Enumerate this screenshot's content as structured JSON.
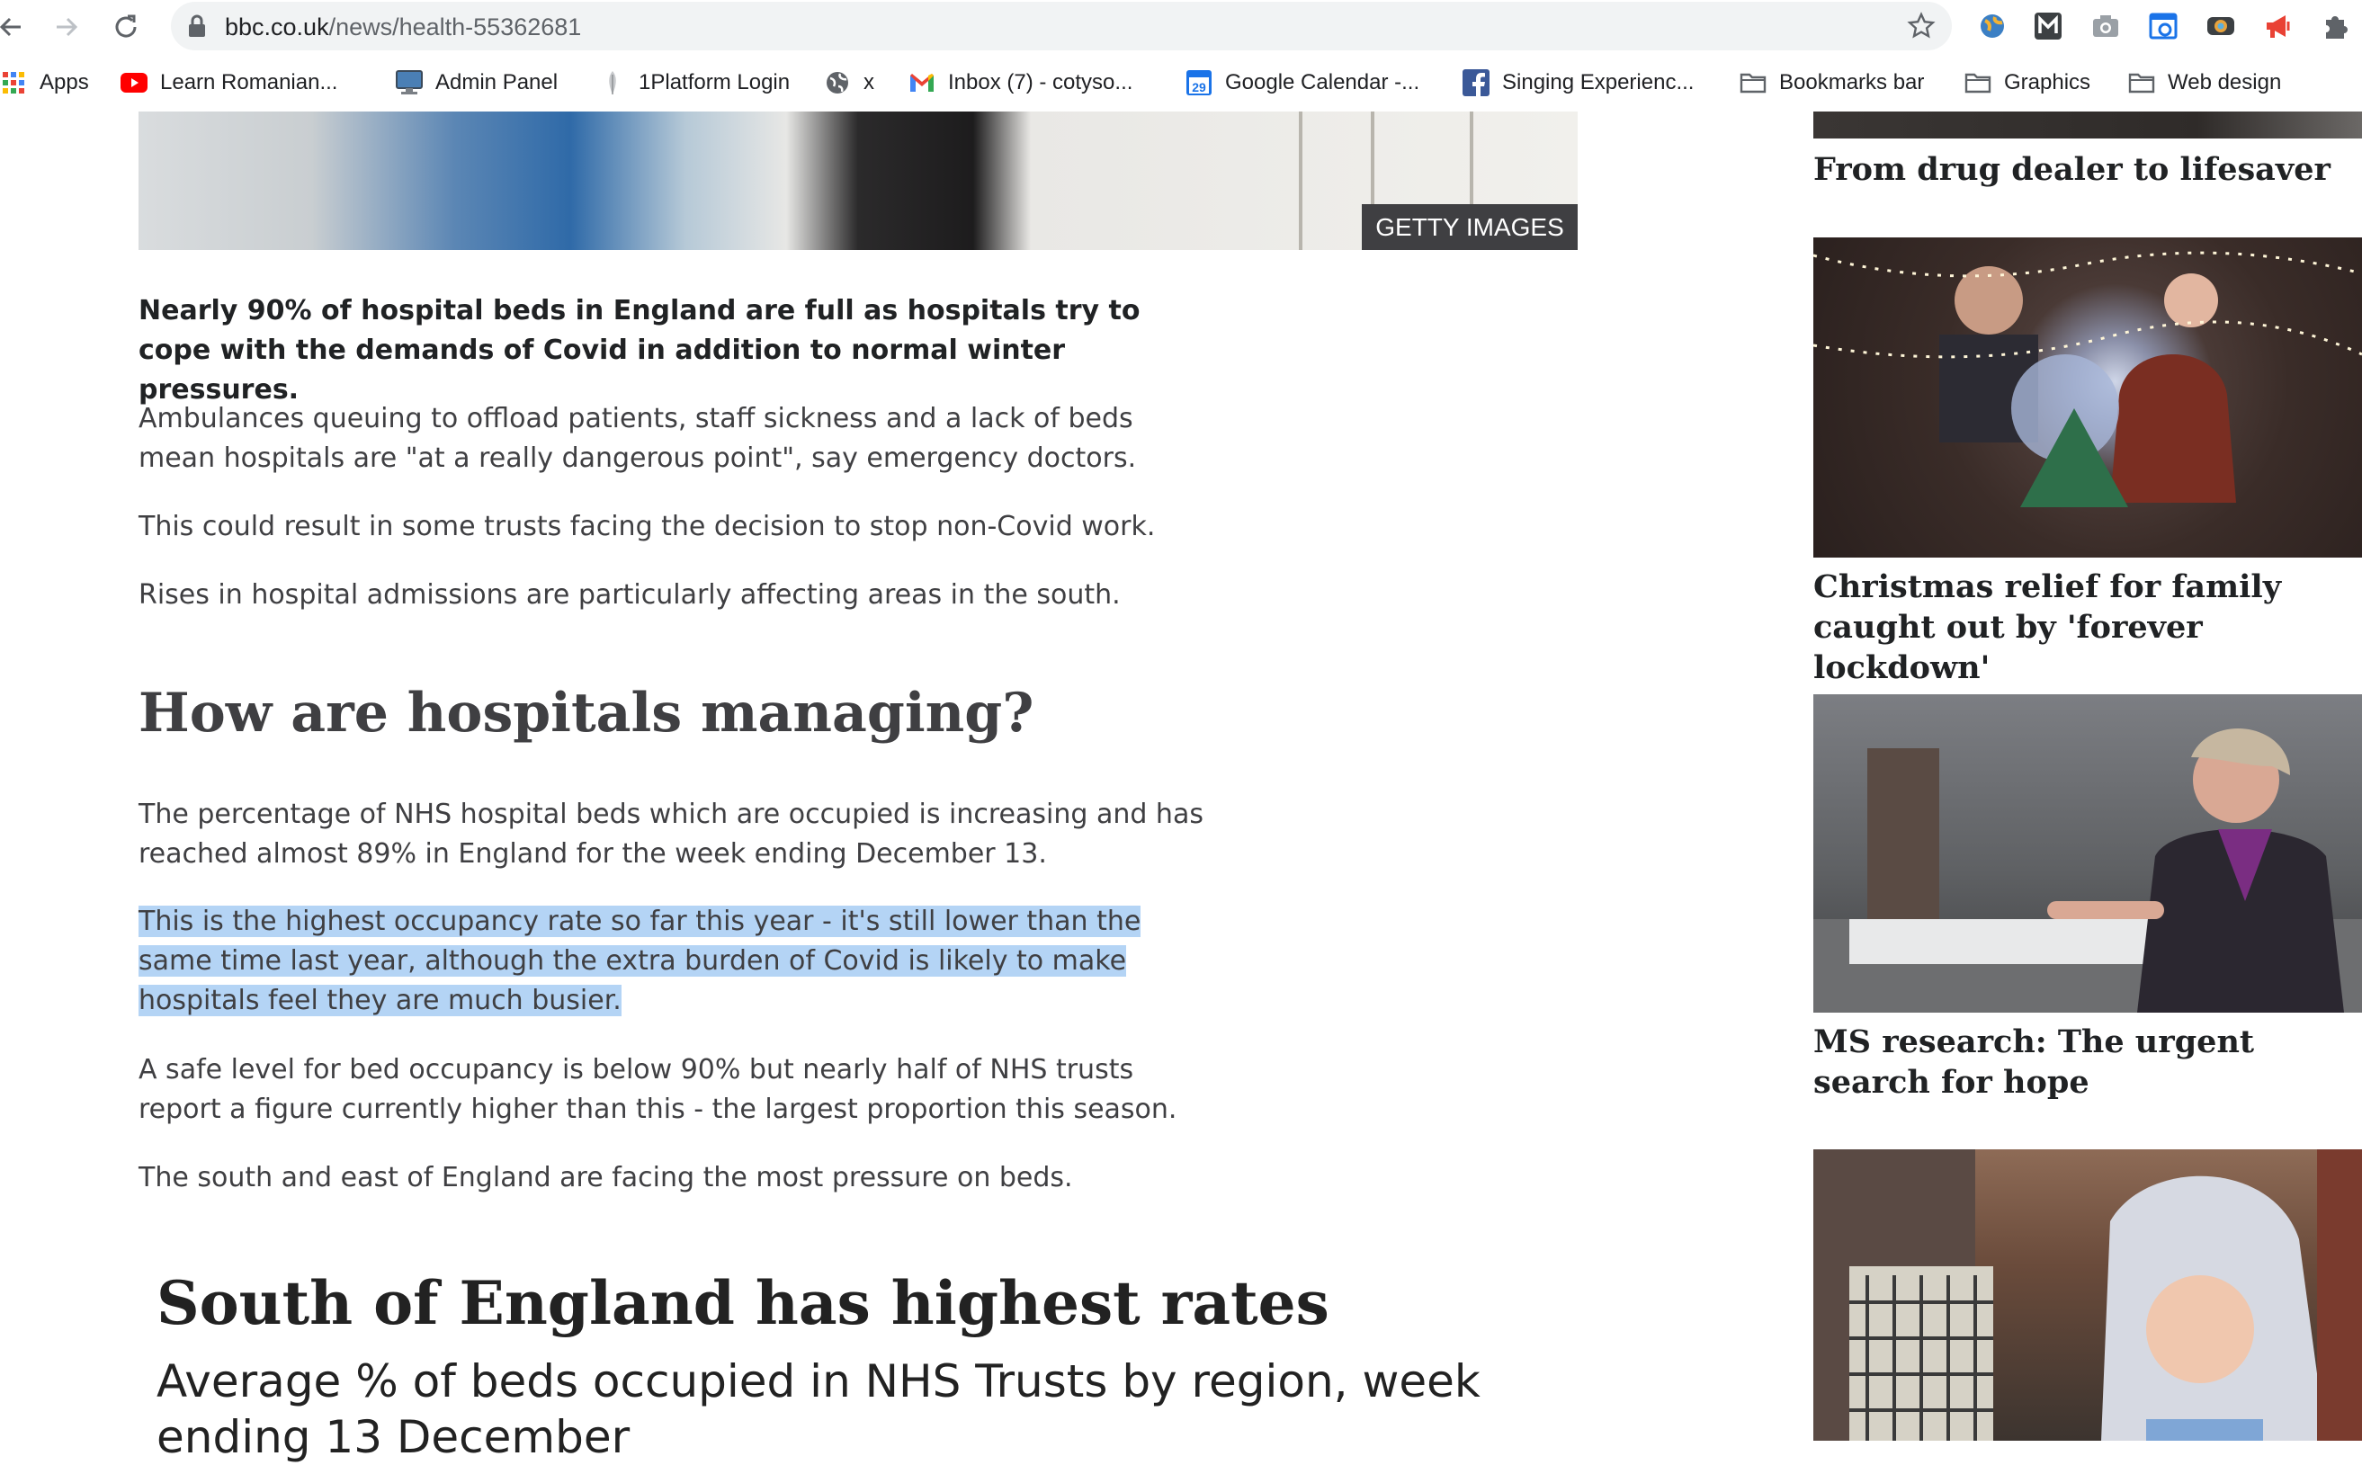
{
  "browser": {
    "url_host": "bbc.co.uk",
    "url_path": "/news/health-55362681",
    "bookmarks": [
      {
        "label": "Apps",
        "icon": "apps-grid-icon"
      },
      {
        "label": "Learn Romanian...",
        "icon": "youtube-icon"
      },
      {
        "label": "Admin Panel",
        "icon": "monitor-icon"
      },
      {
        "label": "1Platform Login",
        "icon": "feather-icon"
      },
      {
        "label": "x",
        "icon": "globe-icon"
      },
      {
        "label": "Inbox (7) - cotyso...",
        "icon": "gmail-icon"
      },
      {
        "label": "Google Calendar -...",
        "icon": "calendar-icon"
      },
      {
        "label": "Singing Experienc...",
        "icon": "facebook-icon"
      },
      {
        "label": "Bookmarks bar",
        "icon": "folder-icon"
      },
      {
        "label": "Graphics",
        "icon": "folder-icon"
      },
      {
        "label": "Web design",
        "icon": "folder-icon"
      }
    ],
    "calendar_day": "29"
  },
  "article": {
    "image_credit": "GETTY IMAGES",
    "lead": "Nearly 90% of hospital beds in England are full as hospitals try to cope with the demands of Covid in addition to normal winter pressures.",
    "paragraphs": [
      "Ambulances queuing to offload patients, staff sickness and a lack of beds mean hospitals are \"at a really dangerous point\", say emergency doctors.",
      "This could result in some trusts facing the decision to stop non-Covid work.",
      "Rises in hospital admissions are particularly affecting areas in the south."
    ],
    "heading": "How are hospitals managing?",
    "section_paragraphs": [
      "The percentage of NHS hospital beds which are occupied is increasing and has reached almost 89% in England for the week ending December 13.",
      "This is the highest occupancy rate so far this year - it's still lower than the same time last year, although the extra burden of Covid is likely to make hospitals feel they are much busier.",
      "A safe level for bed occupancy is below 90% but nearly half of NHS trusts report a figure currently higher than this - the largest proportion this season.",
      "The south and east of England are facing the most pressure on beds."
    ],
    "chart_title": "South of England has highest rates",
    "chart_subtitle": "Average % of beds occupied in NHS Trusts by region, week ending 13 December"
  },
  "sidebar": {
    "stories": [
      {
        "title": "From drug dealer to lifesaver"
      },
      {
        "title": "Christmas relief for family caught out by 'forever lockdown'"
      },
      {
        "title": "MS research: The urgent search for hope"
      }
    ]
  },
  "colors": {
    "selection": "#b4d4f5",
    "text": "#3f3f42",
    "credit_bg": "#3f3f42"
  }
}
